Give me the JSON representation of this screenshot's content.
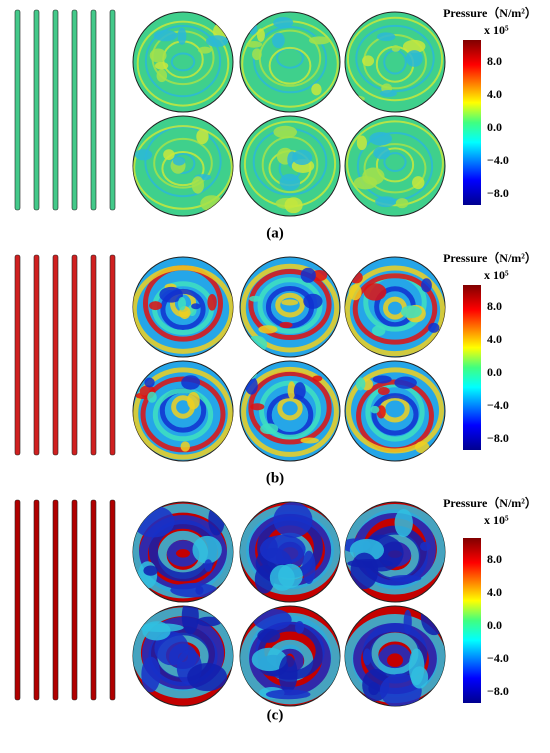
{
  "panels": [
    {
      "label": "(a)",
      "colorbar": {
        "title": "Pressure（N/m²）",
        "scale": "x 10⁵",
        "ticks": [
          "8.0",
          "4.0",
          "0.0",
          "−4.0",
          "−8.0"
        ]
      }
    },
    {
      "label": "(b)",
      "colorbar": {
        "title": "Pressure（N/m²）",
        "scale": "x 10⁵",
        "ticks": [
          "8.0",
          "4.0",
          "0.0",
          "−4.0",
          "−8.0"
        ]
      }
    },
    {
      "label": "(c)",
      "colorbar": {
        "title": "Pressure（N/m²）",
        "scale": "x 10⁵",
        "ticks": [
          "8.0",
          "4.0",
          "0.0",
          "−4.0",
          "−8.0"
        ]
      }
    }
  ]
}
